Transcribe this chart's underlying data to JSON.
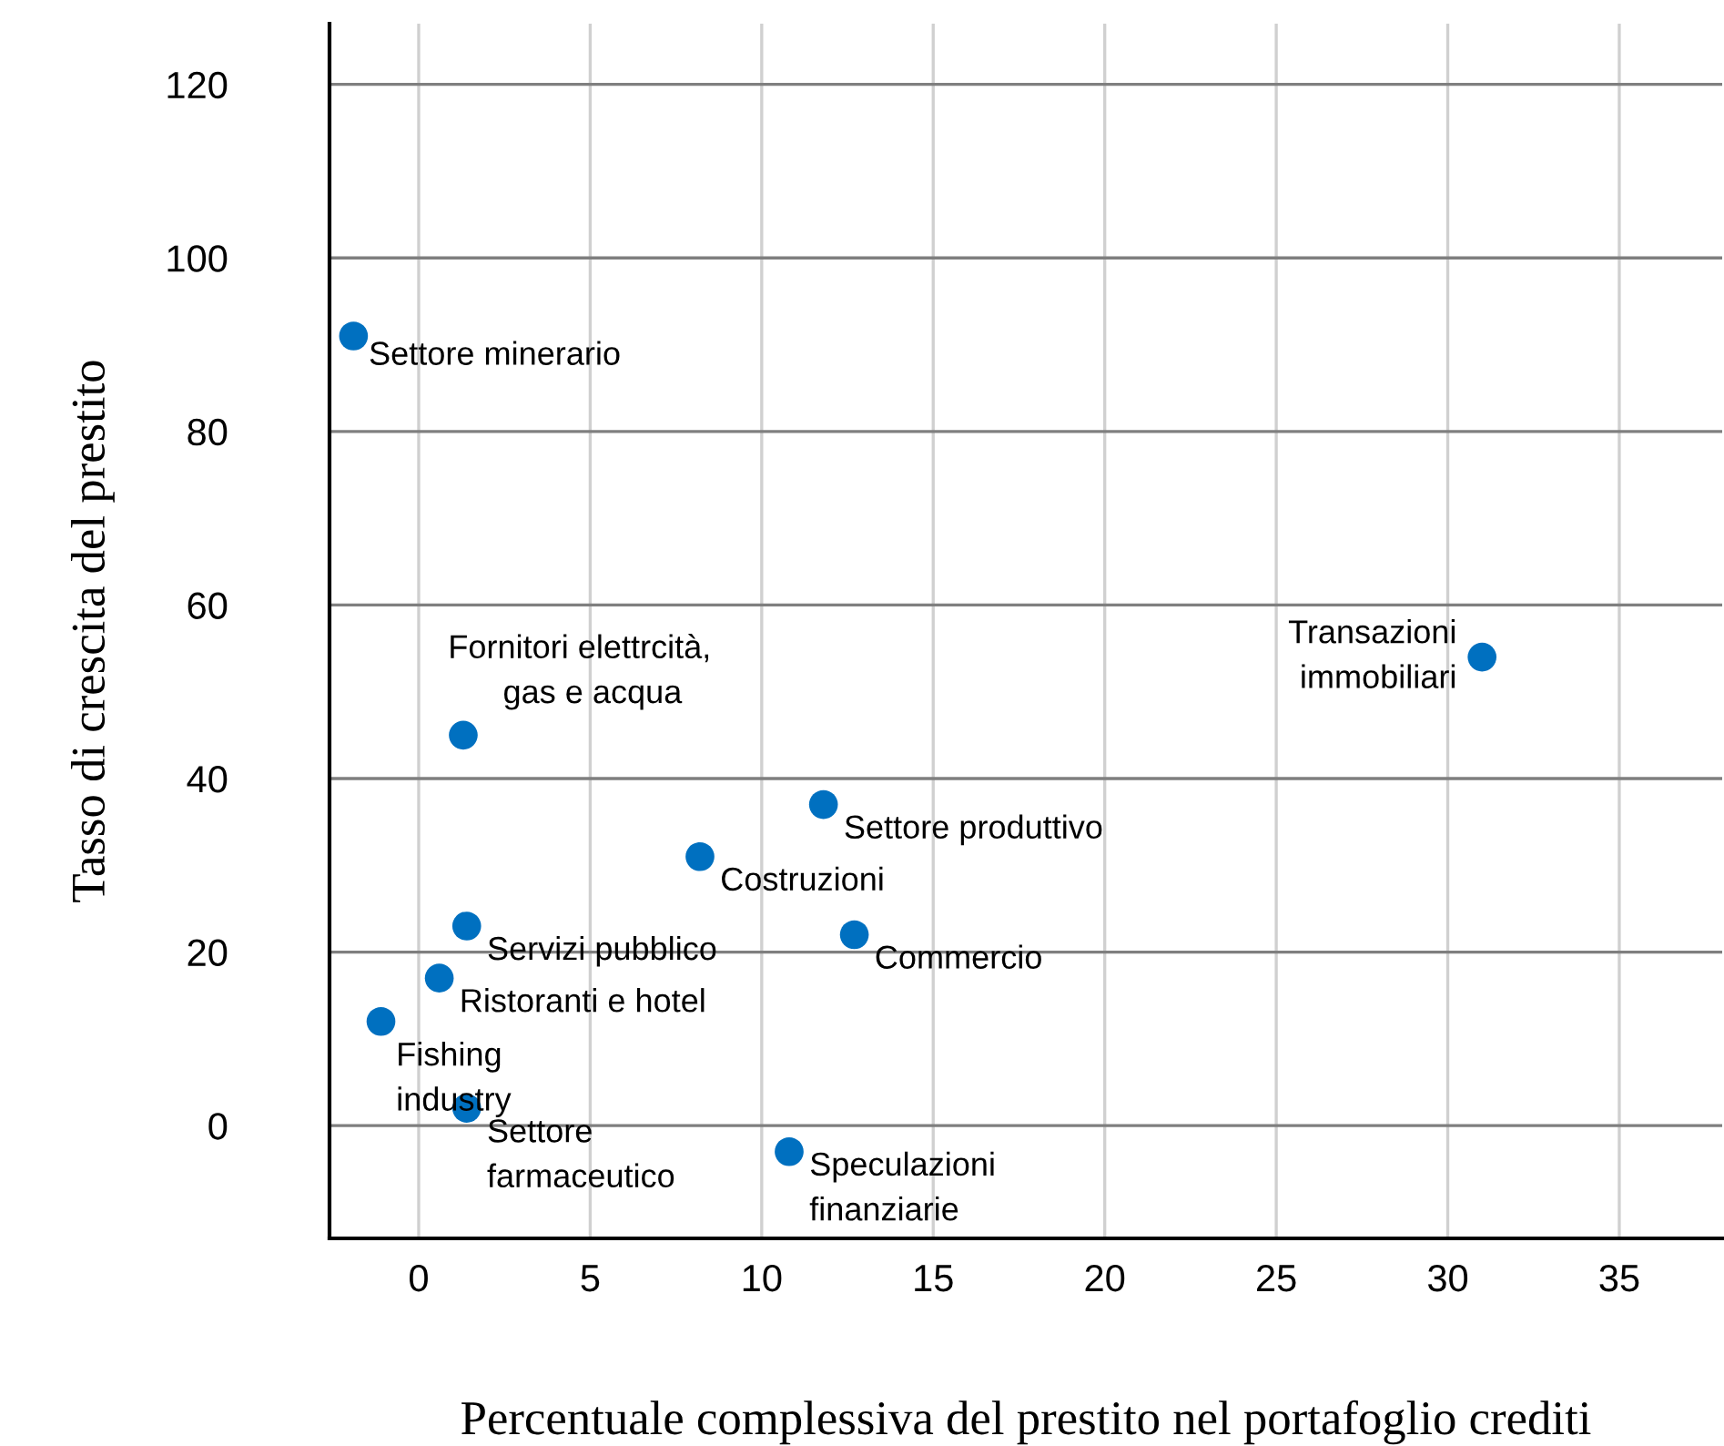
{
  "chart_data": {
    "type": "scatter",
    "xlabel": "Percentuale complessiva del prestito nel portafoglio crediti",
    "ylabel": "Tasso di crescita del prestito",
    "x": [
      -1.9,
      31.0,
      1.3,
      11.8,
      8.2,
      1.4,
      12.7,
      0.6,
      -1.1,
      1.4,
      10.8
    ],
    "series": [
      {
        "color": "#0070c0",
        "values": [
          91,
          54,
          45,
          37,
          31,
          23,
          22,
          17,
          12,
          2,
          -3
        ]
      }
    ],
    "xlim": [
      -2.6,
      38
    ],
    "ylim": [
      -13,
      127
    ],
    "xticks": [
      0,
      5,
      10,
      15,
      20,
      25,
      30,
      35
    ],
    "yticks": [
      0,
      20,
      40,
      60,
      80,
      100,
      120
    ],
    "grid": true,
    "marker": "circle",
    "annotations": [
      {
        "text": "Settore minerario",
        "x": -1.9,
        "y": 91
      },
      {
        "text": "Transazioni\nimmobiliari",
        "x": 31.0,
        "y": 54
      },
      {
        "text": "Fornitori elettrcità,\n      gas e acqua",
        "x": 1.3,
        "y": 45
      },
      {
        "text": "Settore produttivo",
        "x": 11.8,
        "y": 37
      },
      {
        "text": "Costruzioni",
        "x": 8.2,
        "y": 31
      },
      {
        "text": "Servizi pubblico",
        "x": 1.4,
        "y": 23
      },
      {
        "text": "Commercio",
        "x": 12.7,
        "y": 22
      },
      {
        "text": "Ristoranti e hotel",
        "x": 0.6,
        "y": 17
      },
      {
        "text": "Fishing\nindustry",
        "x": -1.1,
        "y": 12
      },
      {
        "text": "Settore\nfarmaceutico",
        "x": 1.4,
        "y": 2
      },
      {
        "text": "Speculazioni\nfinanziarie",
        "x": 10.8,
        "y": -3
      }
    ]
  }
}
